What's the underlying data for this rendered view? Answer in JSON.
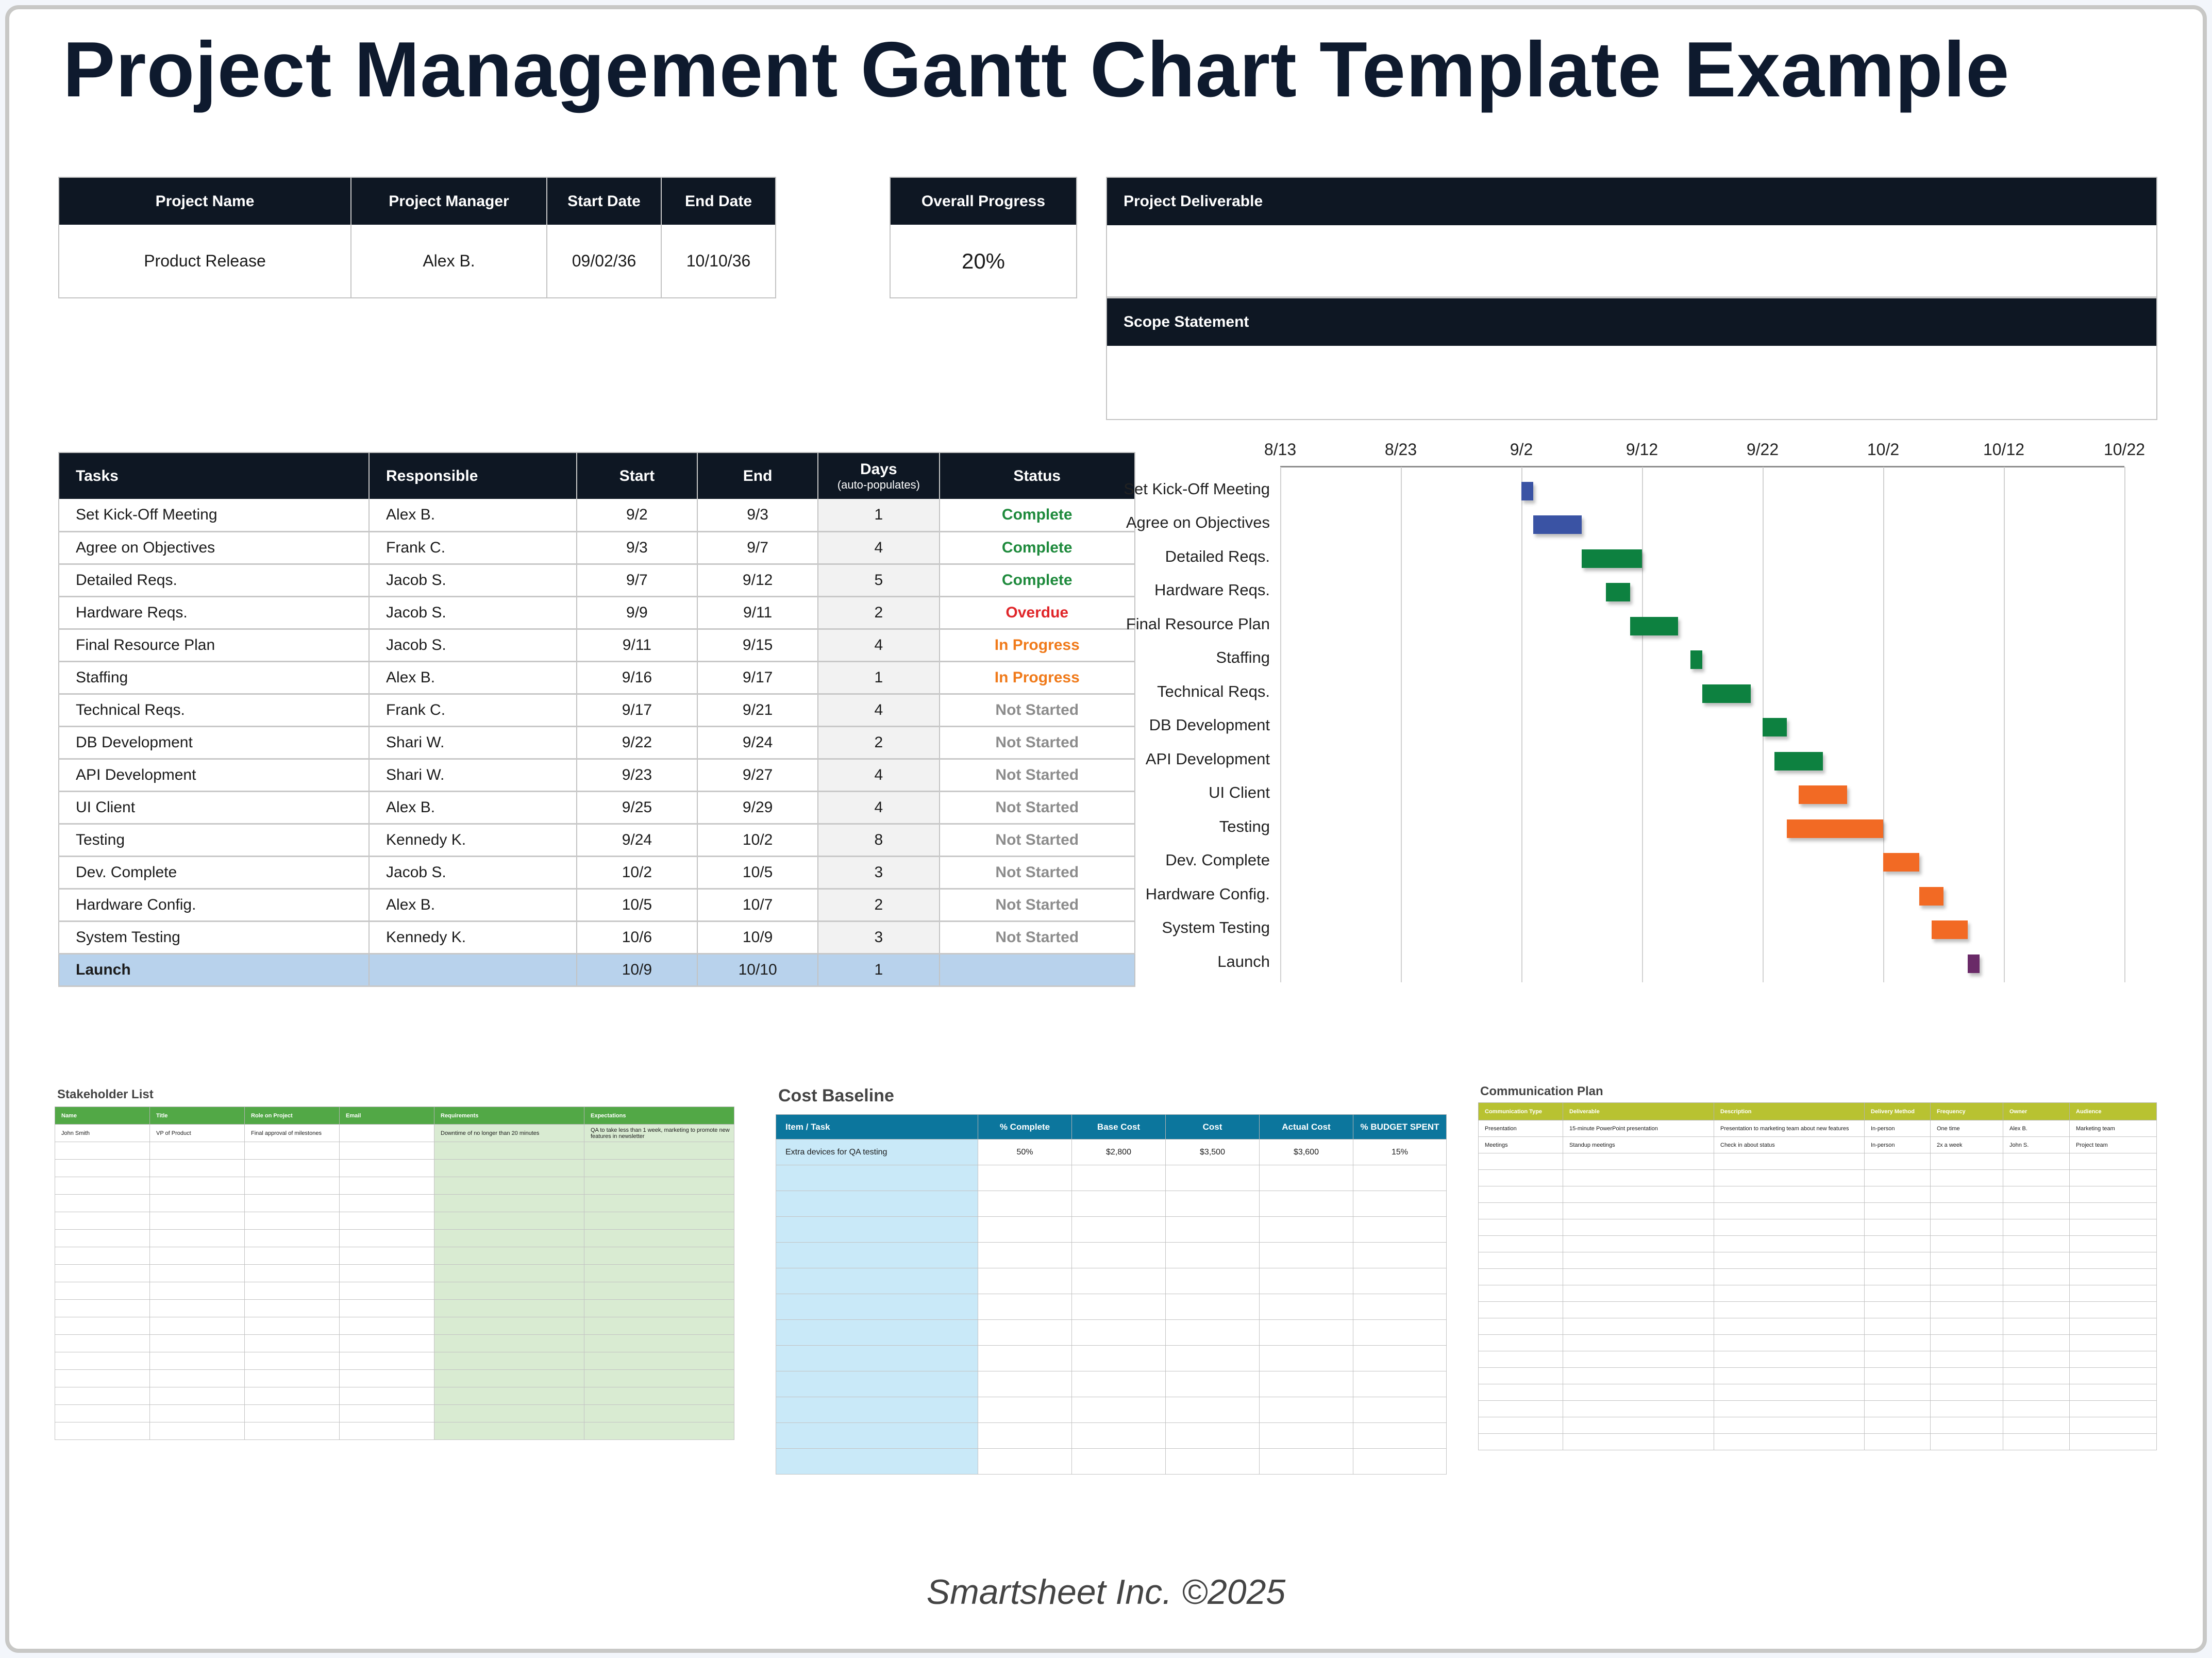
{
  "title": "Project Management Gantt Chart Template Example",
  "project_info": {
    "headers": [
      "Project Name",
      "Project Manager",
      "Start Date",
      "End Date"
    ],
    "values": [
      "Product Release",
      "Alex B.",
      "09/02/36",
      "10/10/36"
    ]
  },
  "overall_progress": {
    "label": "Overall Progress",
    "value": "20%"
  },
  "project_deliverable": {
    "label": "Project Deliverable",
    "value": ""
  },
  "scope_statement": {
    "label": "Scope Statement",
    "value": ""
  },
  "tasks_table": {
    "headers": {
      "task": "Tasks",
      "responsible": "Responsible",
      "start": "Start",
      "end": "End",
      "days": "Days",
      "days_sub": "(auto-populates)",
      "status": "Status"
    },
    "rows": [
      {
        "task": "Set Kick-Off Meeting",
        "responsible": "Alex B.",
        "start": "9/2",
        "end": "9/3",
        "days": "1",
        "status": "Complete"
      },
      {
        "task": "Agree on Objectives",
        "responsible": "Frank C.",
        "start": "9/3",
        "end": "9/7",
        "days": "4",
        "status": "Complete"
      },
      {
        "task": "Detailed Reqs.",
        "responsible": "Jacob S.",
        "start": "9/7",
        "end": "9/12",
        "days": "5",
        "status": "Complete"
      },
      {
        "task": "Hardware Reqs.",
        "responsible": "Jacob S.",
        "start": "9/9",
        "end": "9/11",
        "days": "2",
        "status": "Overdue"
      },
      {
        "task": "Final Resource Plan",
        "responsible": "Jacob S.",
        "start": "9/11",
        "end": "9/15",
        "days": "4",
        "status": "In Progress"
      },
      {
        "task": "Staffing",
        "responsible": "Alex B.",
        "start": "9/16",
        "end": "9/17",
        "days": "1",
        "status": "In Progress"
      },
      {
        "task": "Technical Reqs.",
        "responsible": "Frank C.",
        "start": "9/17",
        "end": "9/21",
        "days": "4",
        "status": "Not Started"
      },
      {
        "task": "DB Development",
        "responsible": "Shari W.",
        "start": "9/22",
        "end": "9/24",
        "days": "2",
        "status": "Not Started"
      },
      {
        "task": "API Development",
        "responsible": "Shari W.",
        "start": "9/23",
        "end": "9/27",
        "days": "4",
        "status": "Not Started"
      },
      {
        "task": "UI Client",
        "responsible": "Alex B.",
        "start": "9/25",
        "end": "9/29",
        "days": "4",
        "status": "Not Started"
      },
      {
        "task": "Testing",
        "responsible": "Kennedy K.",
        "start": "9/24",
        "end": "10/2",
        "days": "8",
        "status": "Not Started"
      },
      {
        "task": "Dev. Complete",
        "responsible": "Jacob S.",
        "start": "10/2",
        "end": "10/5",
        "days": "3",
        "status": "Not Started"
      },
      {
        "task": "Hardware Config.",
        "responsible": "Alex B.",
        "start": "10/5",
        "end": "10/7",
        "days": "2",
        "status": "Not Started"
      },
      {
        "task": "System Testing",
        "responsible": "Kennedy K.",
        "start": "10/6",
        "end": "10/9",
        "days": "3",
        "status": "Not Started"
      },
      {
        "task": "Launch",
        "responsible": "",
        "start": "10/9",
        "end": "10/10",
        "days": "1",
        "status": ""
      }
    ],
    "status_colors": {
      "Complete": "#1e8a3c",
      "Overdue": "#e0262a",
      "In Progress": "#f07a1a",
      "Not Started": "#8c8c8c"
    }
  },
  "chart_data": {
    "type": "bar",
    "subtype": "gantt",
    "title": "",
    "x_ticks": [
      "8/13",
      "8/23",
      "9/2",
      "9/12",
      "9/22",
      "10/2",
      "10/12",
      "10/22"
    ],
    "x_range_days": [
      0,
      70
    ],
    "grid": true,
    "categories": [
      "Set Kick-Off Meeting",
      "Agree on Objectives",
      "Detailed Reqs.",
      "Hardware Reqs.",
      "Final Resource Plan",
      "Staffing",
      "Technical Reqs.",
      "DB Development",
      "API Development",
      "UI Client",
      "Testing",
      "Dev. Complete",
      "Hardware Config.",
      "System Testing",
      "Launch"
    ],
    "series": [
      {
        "name": "start_offset_days_from_8/13",
        "values": [
          20,
          21,
          25,
          27,
          29,
          34,
          35,
          40,
          41,
          43,
          42,
          50,
          53,
          54,
          57
        ]
      },
      {
        "name": "duration_days",
        "values": [
          1,
          4,
          5,
          2,
          4,
          1,
          4,
          2,
          4,
          4,
          8,
          3,
          2,
          3,
          1
        ]
      }
    ],
    "bar_colors": [
      "#3a53a4",
      "#3a53a4",
      "#0d8140",
      "#0d8140",
      "#0d8140",
      "#0d8140",
      "#0d8140",
      "#0d8140",
      "#0d8140",
      "#f26a24",
      "#f26a24",
      "#f26a24",
      "#f26a24",
      "#f26a24",
      "#6a2a68"
    ]
  },
  "stakeholder_list": {
    "title": "Stakeholder List",
    "headers": [
      "Name",
      "Title",
      "Role on Project",
      "Email",
      "Requirements",
      "Expectations"
    ],
    "rows": [
      [
        "John Smith",
        "VP of Product",
        "Final approval of milestones",
        "",
        "Downtime of no longer than 20 minutes",
        "QA to take less than 1 week, marketing to promote new features in newsletter"
      ]
    ],
    "empty_rows": 17
  },
  "cost_baseline": {
    "title": "Cost Baseline",
    "headers": [
      "Item / Task",
      "% Complete",
      "Base Cost",
      "Cost",
      "Actual Cost",
      "% BUDGET SPENT"
    ],
    "rows": [
      [
        "Extra devices for QA testing",
        "50%",
        "$2,800",
        "$3,500",
        "$3,600",
        "15%"
      ]
    ],
    "empty_rows": 12
  },
  "communication_plan": {
    "title": "Communication Plan",
    "headers": [
      "Communication Type",
      "Deliverable",
      "Description",
      "Delivery Method",
      "Frequency",
      "Owner",
      "Audience"
    ],
    "rows": [
      [
        "Presentation",
        "15-minute PowerPoint presentation",
        "Presentation to marketing team about new features",
        "In-person",
        "One time",
        "Alex B.",
        "Marketing team"
      ],
      [
        "Meetings",
        "Standup meetings",
        "Check in about status",
        "In-person",
        "2x a week",
        "John S.",
        "Project team"
      ]
    ],
    "empty_rows": 18
  },
  "footer": "Smartsheet Inc. ©2025"
}
